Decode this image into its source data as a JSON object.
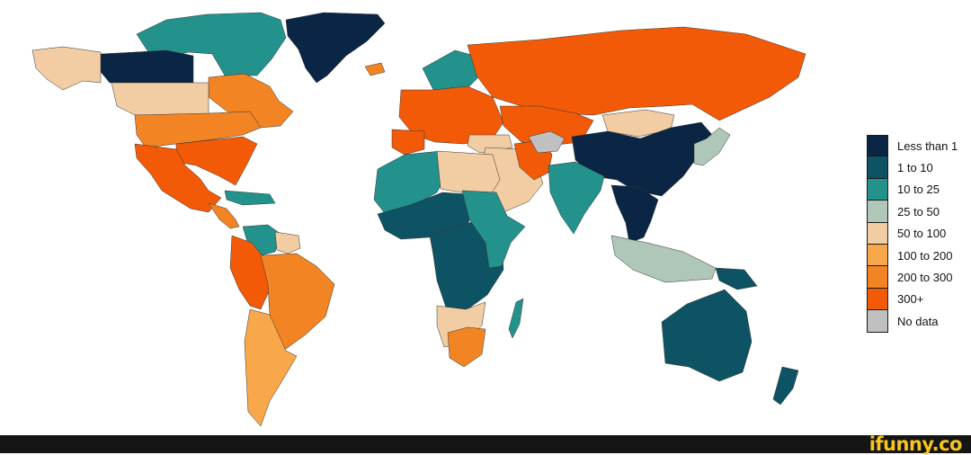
{
  "legend": {
    "items": [
      {
        "label": "Less than 1",
        "color": "#0b2545"
      },
      {
        "label": "1 to 10",
        "color": "#0d5364"
      },
      {
        "label": "10 to 25",
        "color": "#23928c"
      },
      {
        "label": "25 to 50",
        "color": "#aec7b8"
      },
      {
        "label": "50 to 100",
        "color": "#f2cda3"
      },
      {
        "label": "100 to 200",
        "color": "#f8a84a"
      },
      {
        "label": "200 to 300",
        "color": "#f28424"
      },
      {
        "label": "300+",
        "color": "#f35a08"
      },
      {
        "label": "No data",
        "color": "#c0c0c0"
      }
    ]
  },
  "map": {
    "regions": [
      {
        "name": "greenland",
        "class": "Less than 1"
      },
      {
        "name": "canada-arctic",
        "class": "10 to 25"
      },
      {
        "name": "canada-northwest",
        "class": "Less than 1"
      },
      {
        "name": "canada-east",
        "class": "200 to 300"
      },
      {
        "name": "alaska",
        "class": "50 to 100"
      },
      {
        "name": "usa-west",
        "class": "50 to 100"
      },
      {
        "name": "usa-central",
        "class": "200 to 300"
      },
      {
        "name": "usa-southeast",
        "class": "300+"
      },
      {
        "name": "mexico",
        "class": "300+"
      },
      {
        "name": "central-america",
        "class": "200 to 300"
      },
      {
        "name": "caribbean",
        "class": "10 to 25"
      },
      {
        "name": "venezuela",
        "class": "10 to 25"
      },
      {
        "name": "guianas",
        "class": "50 to 100"
      },
      {
        "name": "peru-colombia",
        "class": "300+"
      },
      {
        "name": "brazil",
        "class": "200 to 300"
      },
      {
        "name": "southern-south-america",
        "class": "100 to 200"
      },
      {
        "name": "iceland",
        "class": "200 to 300"
      },
      {
        "name": "scandinavia",
        "class": "10 to 25"
      },
      {
        "name": "western-europe",
        "class": "300+"
      },
      {
        "name": "iberia",
        "class": "300+"
      },
      {
        "name": "russia",
        "class": "300+"
      },
      {
        "name": "kazakhstan",
        "class": "300+"
      },
      {
        "name": "mongolia",
        "class": "50 to 100"
      },
      {
        "name": "china",
        "class": "Less than 1"
      },
      {
        "name": "korea-japan",
        "class": "25 to 50"
      },
      {
        "name": "turkey",
        "class": "50 to 100"
      },
      {
        "name": "middle-east",
        "class": "50 to 100"
      },
      {
        "name": "iran",
        "class": "300+"
      },
      {
        "name": "central-asia",
        "class": "No data"
      },
      {
        "name": "india",
        "class": "10 to 25"
      },
      {
        "name": "southeast-asia",
        "class": "Less than 1"
      },
      {
        "name": "indonesia",
        "class": "25 to 50"
      },
      {
        "name": "papua",
        "class": "1 to 10"
      },
      {
        "name": "north-africa-west",
        "class": "10 to 25"
      },
      {
        "name": "libya-egypt",
        "class": "50 to 100"
      },
      {
        "name": "west-africa",
        "class": "1 to 10"
      },
      {
        "name": "central-africa",
        "class": "1 to 10"
      },
      {
        "name": "east-africa",
        "class": "10 to 25"
      },
      {
        "name": "southern-africa",
        "class": "50 to 100"
      },
      {
        "name": "south-africa",
        "class": "200 to 300"
      },
      {
        "name": "madagascar",
        "class": "10 to 25"
      },
      {
        "name": "australia",
        "class": "1 to 10"
      },
      {
        "name": "new-zealand",
        "class": "1 to 10"
      }
    ]
  },
  "watermark": "ifunny.co"
}
